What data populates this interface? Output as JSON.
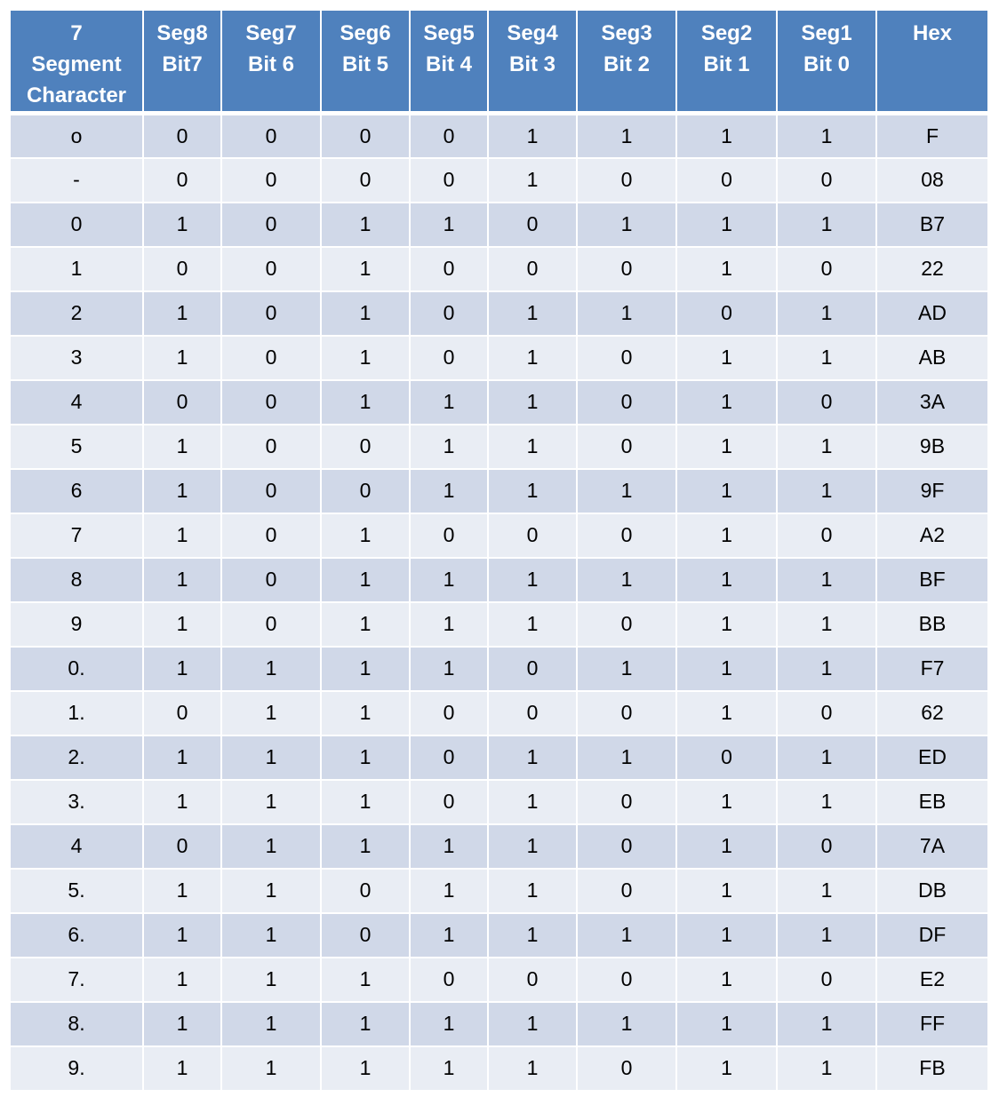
{
  "header": [
    {
      "line1": "7",
      "line2": "Segment",
      "line3": "Character"
    },
    {
      "line1": "Seg8",
      "line2": "Bit7",
      "line3": ""
    },
    {
      "line1": "Seg7",
      "line2": "Bit 6",
      "line3": ""
    },
    {
      "line1": "Seg6",
      "line2": "Bit 5",
      "line3": ""
    },
    {
      "line1": "Seg5",
      "line2": "Bit 4",
      "line3": ""
    },
    {
      "line1": "Seg4",
      "line2": "Bit 3",
      "line3": ""
    },
    {
      "line1": "Seg3",
      "line2": "Bit 2",
      "line3": ""
    },
    {
      "line1": "Seg2",
      "line2": "Bit 1",
      "line3": ""
    },
    {
      "line1": "Seg1",
      "line2": "Bit 0",
      "line3": ""
    },
    {
      "line1": "Hex",
      "line2": "",
      "line3": ""
    }
  ],
  "rows": [
    [
      "o",
      "0",
      "0",
      "0",
      "0",
      "1",
      "1",
      "1",
      "1",
      "F"
    ],
    [
      "-",
      "0",
      "0",
      "0",
      "0",
      "1",
      "0",
      "0",
      "0",
      "08"
    ],
    [
      "0",
      "1",
      "0",
      "1",
      "1",
      "0",
      "1",
      "1",
      "1",
      "B7"
    ],
    [
      "1",
      "0",
      "0",
      "1",
      "0",
      "0",
      "0",
      "1",
      "0",
      "22"
    ],
    [
      "2",
      "1",
      "0",
      "1",
      "0",
      "1",
      "1",
      "0",
      "1",
      "AD"
    ],
    [
      "3",
      "1",
      "0",
      "1",
      "0",
      "1",
      "0",
      "1",
      "1",
      "AB"
    ],
    [
      "4",
      "0",
      "0",
      "1",
      "1",
      "1",
      "0",
      "1",
      "0",
      "3A"
    ],
    [
      "5",
      "1",
      "0",
      "0",
      "1",
      "1",
      "0",
      "1",
      "1",
      "9B"
    ],
    [
      "6",
      "1",
      "0",
      "0",
      "1",
      "1",
      "1",
      "1",
      "1",
      "9F"
    ],
    [
      "7",
      "1",
      "0",
      "1",
      "0",
      "0",
      "0",
      "1",
      "0",
      "A2"
    ],
    [
      "8",
      "1",
      "0",
      "1",
      "1",
      "1",
      "1",
      "1",
      "1",
      "BF"
    ],
    [
      "9",
      "1",
      "0",
      "1",
      "1",
      "1",
      "0",
      "1",
      "1",
      "BB"
    ],
    [
      "0.",
      "1",
      "1",
      "1",
      "1",
      "0",
      "1",
      "1",
      "1",
      "F7"
    ],
    [
      "1.",
      "0",
      "1",
      "1",
      "0",
      "0",
      "0",
      "1",
      "0",
      "62"
    ],
    [
      "2.",
      "1",
      "1",
      "1",
      "0",
      "1",
      "1",
      "0",
      "1",
      "ED"
    ],
    [
      "3.",
      "1",
      "1",
      "1",
      "0",
      "1",
      "0",
      "1",
      "1",
      "EB"
    ],
    [
      "4",
      "0",
      "1",
      "1",
      "1",
      "1",
      "0",
      "1",
      "0",
      "7A"
    ],
    [
      "5.",
      "1",
      "1",
      "0",
      "1",
      "1",
      "0",
      "1",
      "1",
      "DB"
    ],
    [
      "6.",
      "1",
      "1",
      "0",
      "1",
      "1",
      "1",
      "1",
      "1",
      "DF"
    ],
    [
      "7.",
      "1",
      "1",
      "1",
      "0",
      "0",
      "0",
      "1",
      "0",
      "E2"
    ],
    [
      "8.",
      "1",
      "1",
      "1",
      "1",
      "1",
      "1",
      "1",
      "1",
      "FF"
    ],
    [
      "9.",
      "1",
      "1",
      "1",
      "1",
      "1",
      "0",
      "1",
      "1",
      "FB"
    ]
  ],
  "colors": {
    "header_bg": "#4f81bd",
    "row_odd_bg": "#d0d8e8",
    "row_even_bg": "#e9edf4"
  }
}
